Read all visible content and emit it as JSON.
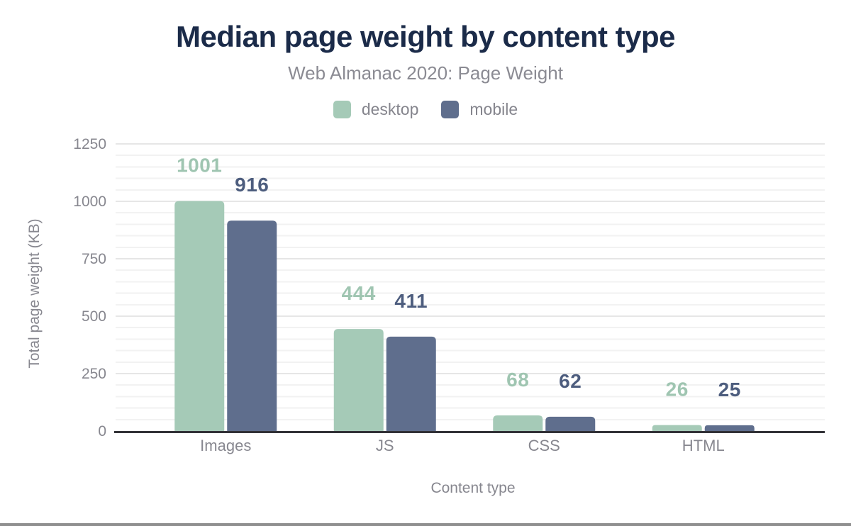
{
  "figure": {
    "title": "Median page weight by content type",
    "subtitle": "Web Almanac 2020: Page Weight"
  },
  "chart_data": {
    "type": "bar",
    "title": "Median page weight by content type",
    "subtitle": "Web Almanac 2020: Page Weight",
    "categories": [
      "Images",
      "JS",
      "CSS",
      "HTML"
    ],
    "series": [
      {
        "name": "desktop",
        "values": [
          1001,
          444,
          68,
          26
        ],
        "color": "#a5cab7",
        "label_color": "#9fc5b1"
      },
      {
        "name": "mobile",
        "values": [
          916,
          411,
          62,
          25
        ],
        "color": "#5f6e8d",
        "label_color": "#4d5d7e"
      }
    ],
    "xlabel": "Content type",
    "ylabel": "Total page weight (KB)",
    "ylim": [
      0,
      1250
    ],
    "yticks": [
      0,
      250,
      500,
      750,
      1000,
      1250
    ],
    "minor_tick_step": 50,
    "grid": "horizontal-major-and-minor",
    "legend_position": "top-center",
    "data_labels": true
  },
  "colors": {
    "title": "#1b2b49",
    "subtitle": "#8b8b93",
    "legend_text": "#85858d",
    "axis_text": "#87878f",
    "grid_major": "#e6e6e6",
    "grid_minor": "#f2f2f2",
    "baseline": "#323237",
    "scrollbar": "#8f8f8f",
    "background": "#ffffff"
  }
}
